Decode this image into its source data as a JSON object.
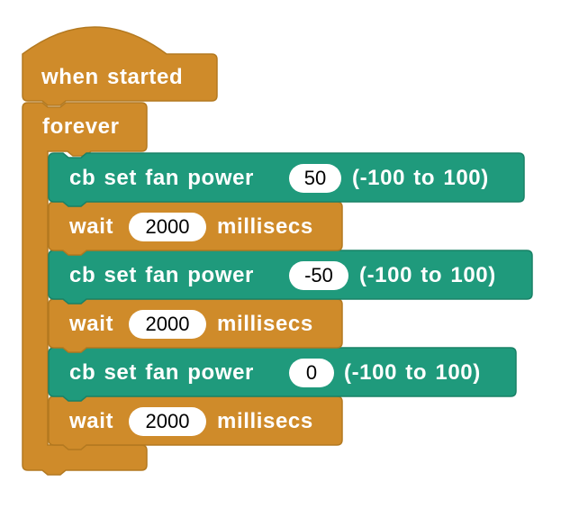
{
  "colors": {
    "control": "#CF8B2A",
    "control_border": "#B37920",
    "extension": "#1F9A7C",
    "extension_border": "#198267",
    "text": "#FFFFFF",
    "input_bg": "#FFFFFF",
    "input_text": "#000000"
  },
  "script": {
    "hat_label": "when started",
    "forever_label": "forever",
    "steps": [
      {
        "kind": "fan",
        "prefix": "cb set fan power",
        "value": "50",
        "suffix": "(-100 to 100)"
      },
      {
        "kind": "wait",
        "prefix": "wait",
        "value": "2000",
        "suffix": "millisecs"
      },
      {
        "kind": "fan",
        "prefix": "cb set fan power",
        "value": "-50",
        "suffix": "(-100 to 100)"
      },
      {
        "kind": "wait",
        "prefix": "wait",
        "value": "2000",
        "suffix": "millisecs"
      },
      {
        "kind": "fan",
        "prefix": "cb set fan power",
        "value": "0",
        "suffix": "(-100 to 100)"
      },
      {
        "kind": "wait",
        "prefix": "wait",
        "value": "2000",
        "suffix": "millisecs"
      }
    ]
  }
}
